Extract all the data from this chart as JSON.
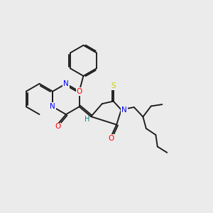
{
  "bg_color": "#ebebeb",
  "bond_color": "#1a1a1a",
  "N_color": "#0000ff",
  "O_color": "#ff0000",
  "S_color": "#cccc00",
  "H_color": "#008080",
  "figsize": [
    3.0,
    3.0
  ],
  "dpi": 100,
  "xlim": [
    0,
    10
  ],
  "ylim": [
    0,
    10
  ],
  "lw": 1.35,
  "BL": 0.72
}
